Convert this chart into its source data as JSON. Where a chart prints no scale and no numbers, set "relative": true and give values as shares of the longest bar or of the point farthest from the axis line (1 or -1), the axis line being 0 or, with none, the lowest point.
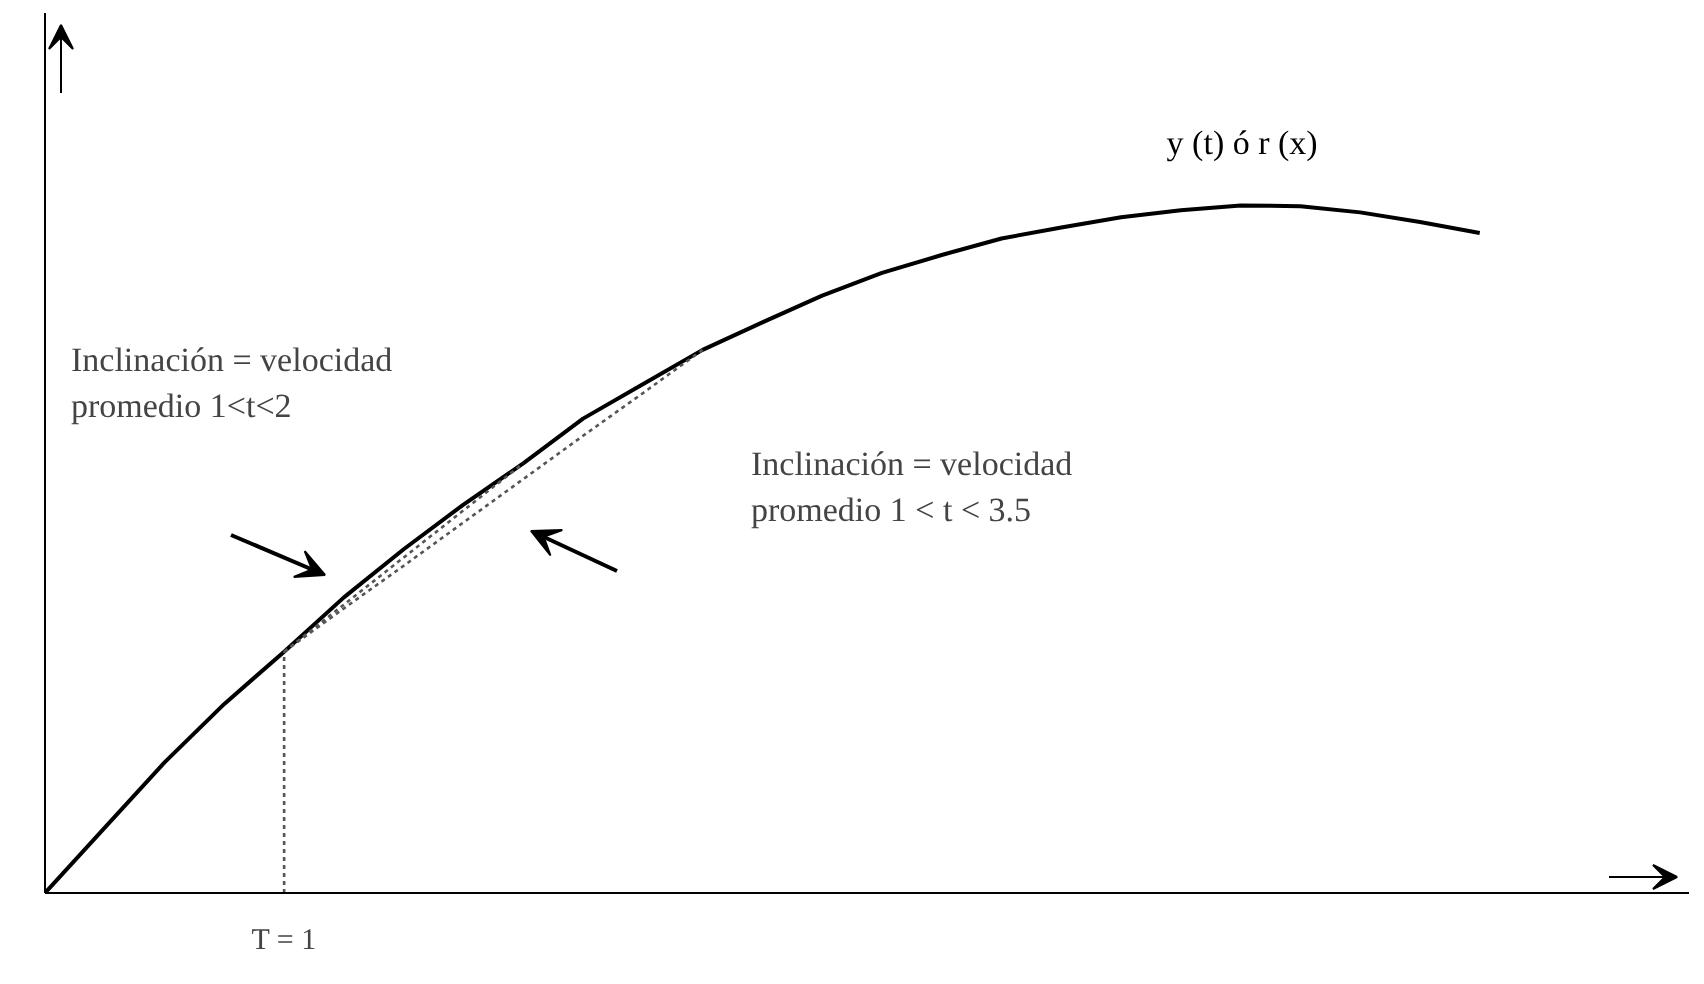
{
  "chart_data": {
    "type": "line",
    "relative": true,
    "categories": [
      null,
      null,
      null,
      null,
      null,
      null,
      null,
      null,
      null,
      null,
      null,
      null,
      null,
      null,
      null,
      null,
      null,
      null,
      null,
      null,
      null,
      null,
      null,
      null,
      null,
      null,
      null,
      null
    ],
    "series": [
      {
        "name": "y (t)  ó  r (x)",
        "color": "#000000",
        "line_style": "solid",
        "values": [
          0,
          0.095,
          0.19,
          0.275,
          0.351,
          0.43,
          0.5,
          0.565,
          0.625,
          0.69,
          0.74,
          0.79,
          0.83,
          0.869,
          0.902,
          0.928,
          0.952,
          0.968,
          0.983,
          0.993,
          1.0,
          0.999,
          0.99,
          0.976,
          0.96,
          null,
          null,
          null
        ]
      },
      {
        "color": "#555555",
        "line_style": "dotted",
        "values": [
          null,
          null,
          null,
          null,
          0.351,
          0.4195,
          0.488,
          0.5565,
          0.625,
          null,
          null,
          null,
          null,
          null,
          null,
          null,
          null,
          null,
          null,
          null,
          null,
          null,
          null,
          null,
          null,
          null,
          null,
          null
        ]
      },
      {
        "color": "#555555",
        "line_style": "dotted",
        "values": [
          null,
          null,
          null,
          null,
          0.351,
          0.414,
          0.476,
          0.539,
          0.602,
          0.665,
          0.727,
          0.79,
          null,
          null,
          null,
          null,
          null,
          null,
          null,
          null,
          null,
          null,
          null,
          null,
          null,
          null,
          null,
          null
        ]
      }
    ],
    "annotations": [
      "T = 1",
      "Inclinación = velocidad\npromedio 1<t<2",
      "Inclinación = velocidad\npromedio 1 < t < 3.5"
    ]
  }
}
